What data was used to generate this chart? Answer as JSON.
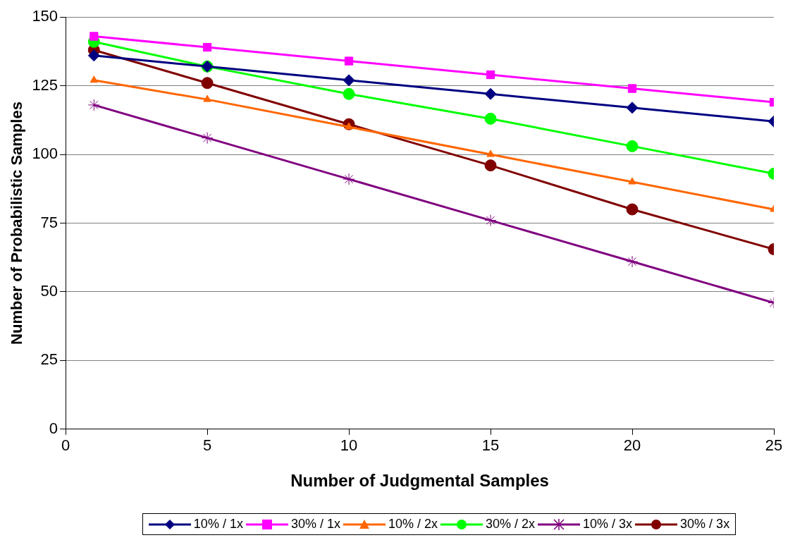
{
  "chart_data": {
    "type": "line",
    "xlabel": "Number of Judgmental Samples",
    "ylabel": "Number of Probabilistic Samples",
    "x": [
      1,
      5,
      10,
      15,
      20,
      25
    ],
    "xlim": [
      0,
      25
    ],
    "xticks": [
      0,
      5,
      10,
      15,
      20,
      25
    ],
    "ylim": [
      0,
      150
    ],
    "yticks": [
      0,
      25,
      50,
      75,
      100,
      125,
      150
    ],
    "grid": "y",
    "legend": "bottom",
    "series": [
      {
        "name": "10% / 1x",
        "color": "#000080",
        "marker": "diamond",
        "values": [
          136,
          132,
          127,
          122,
          117,
          112
        ]
      },
      {
        "name": "30% / 1x",
        "color": "#ff00ff",
        "marker": "square",
        "values": [
          143,
          139,
          134,
          129,
          124,
          119
        ]
      },
      {
        "name": "10% / 2x",
        "color": "#ff6600",
        "marker": "triangle",
        "values": [
          127,
          120,
          110,
          100,
          90,
          80
        ]
      },
      {
        "name": "30% / 2x",
        "color": "#00ff00",
        "marker": "circle",
        "values": [
          141,
          132,
          122,
          113,
          103,
          93
        ]
      },
      {
        "name": "10% / 3x",
        "color": "#800080",
        "marker": "cross",
        "values": [
          118,
          106,
          91,
          76,
          61,
          46
        ]
      },
      {
        "name": "30% / 3x",
        "color": "#800000",
        "marker": "circle",
        "values": [
          138,
          126,
          111,
          96,
          80,
          65.5
        ]
      }
    ]
  }
}
